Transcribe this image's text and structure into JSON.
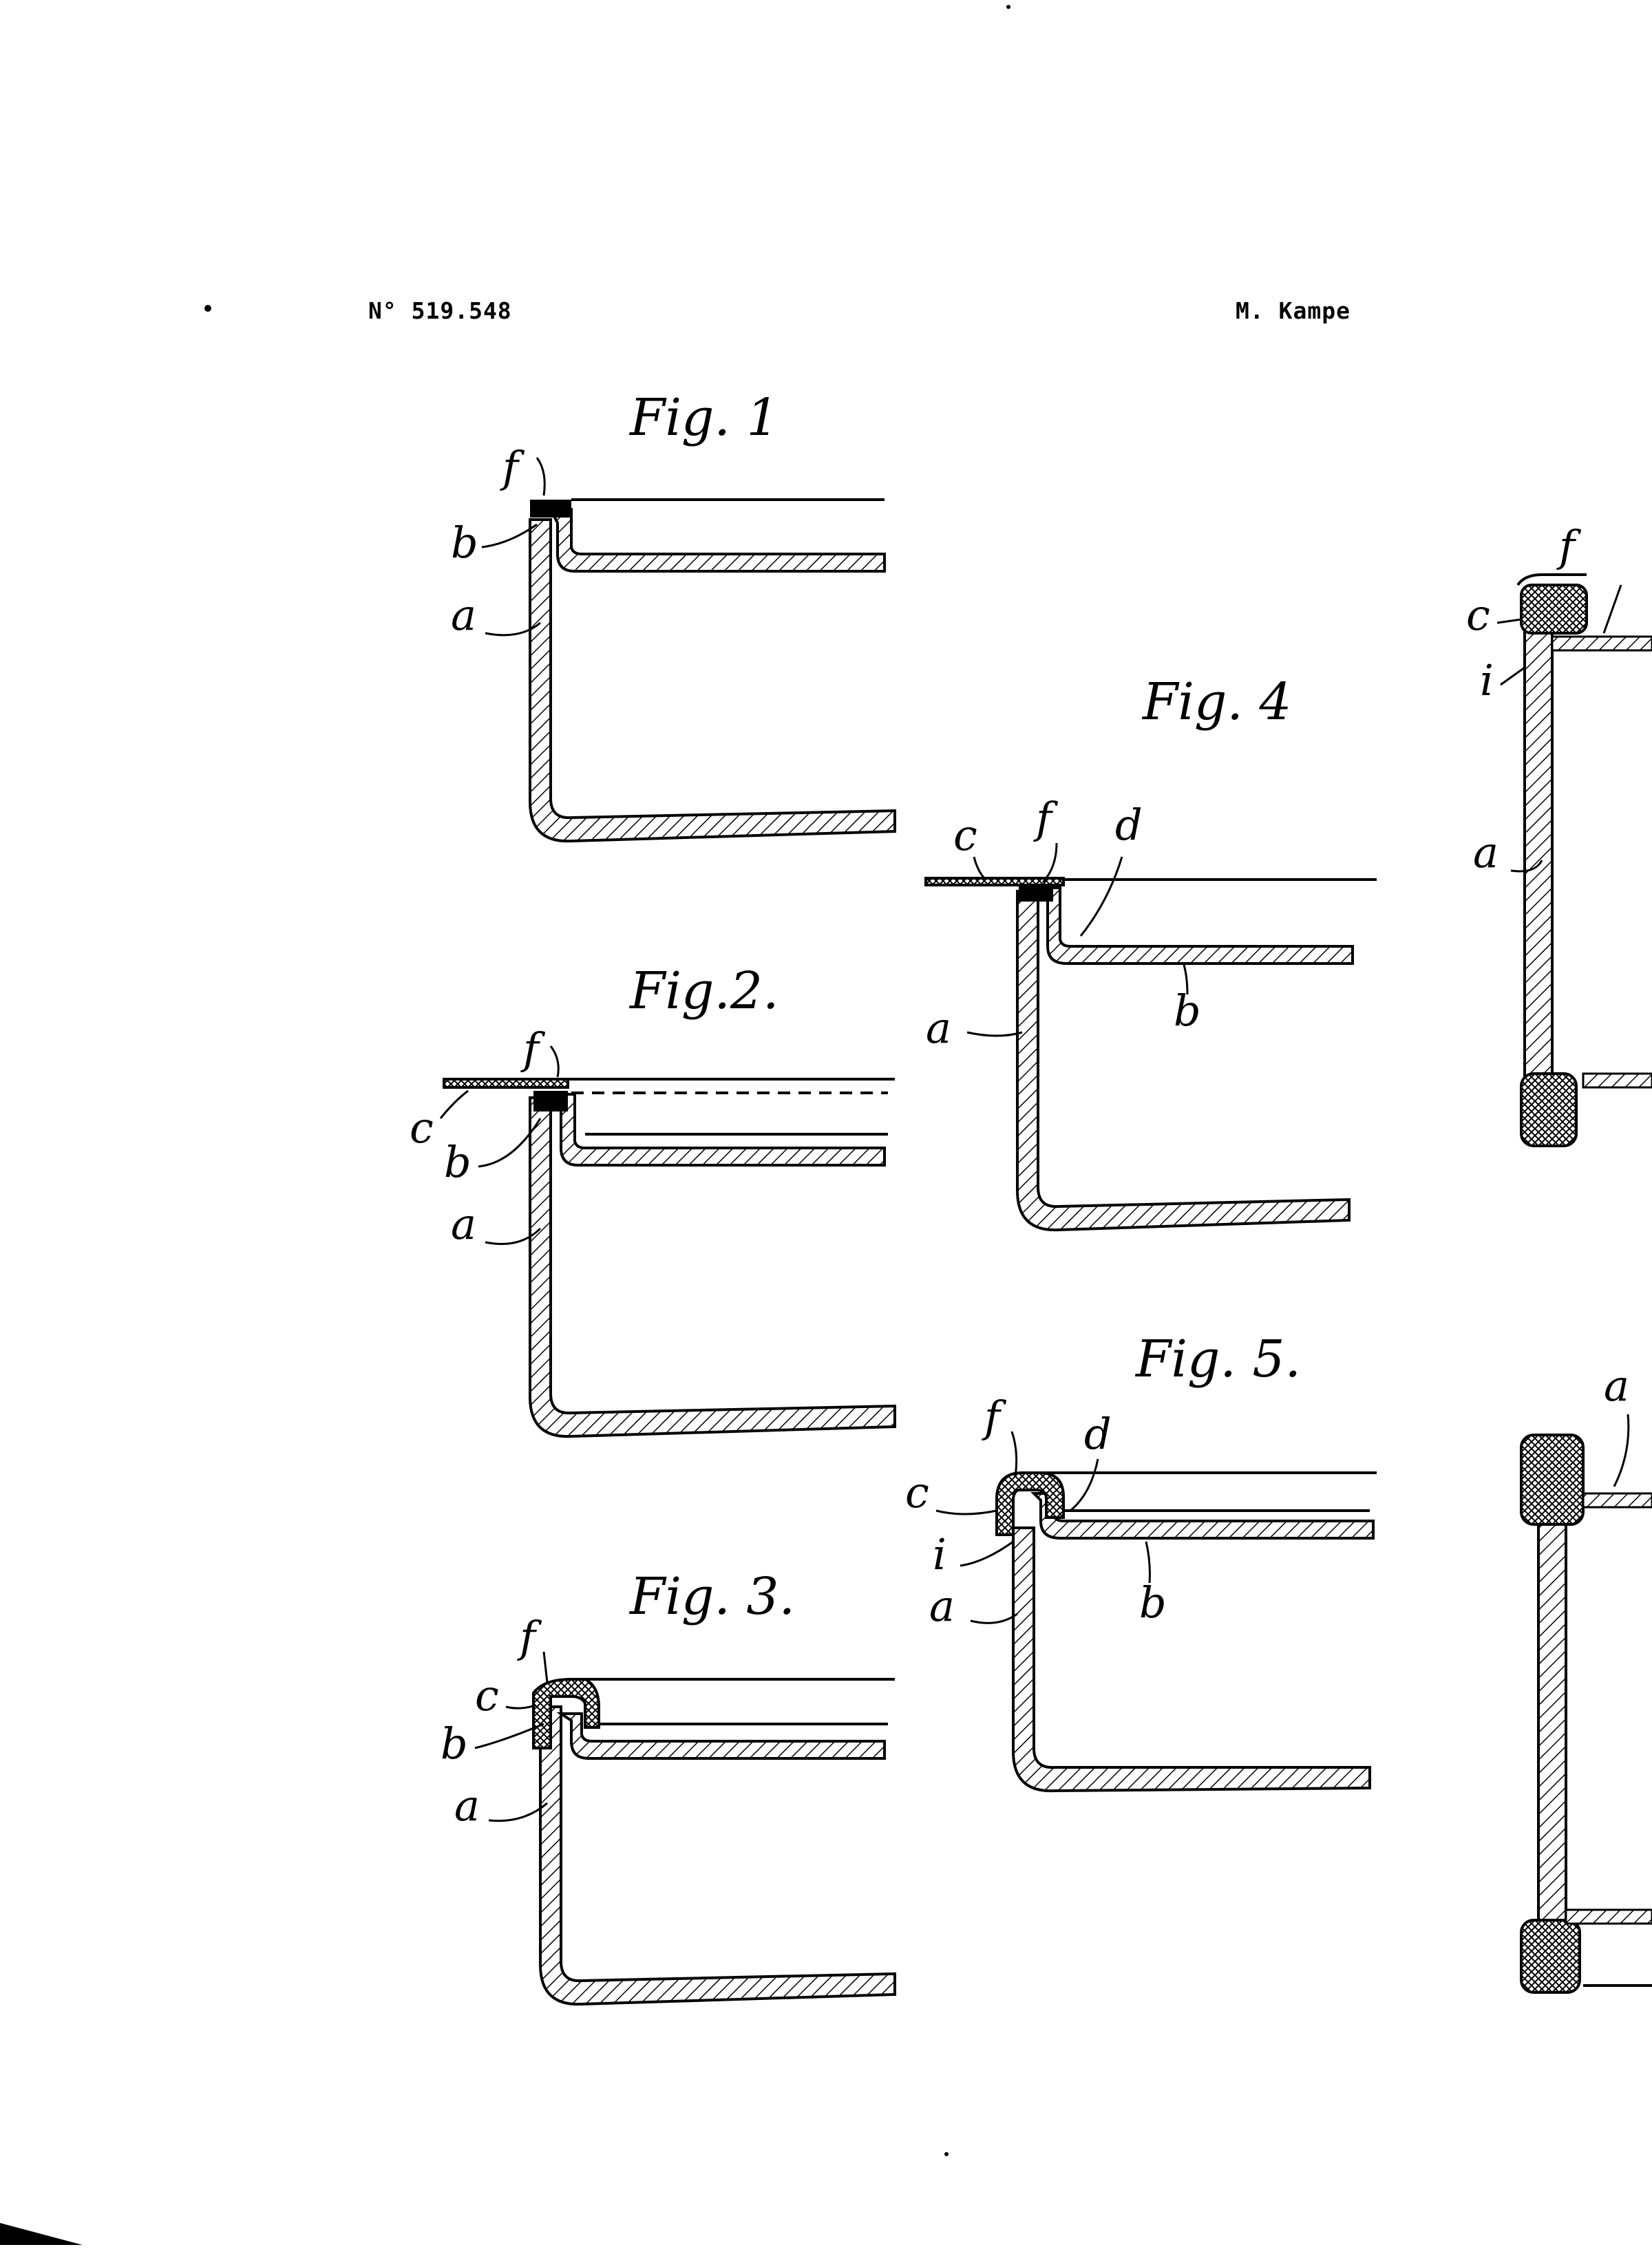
{
  "header": {
    "patent_number": "N° 519.548",
    "inventor": "M. Kampe"
  },
  "figures": {
    "fig1": {
      "title": "Fig. 1",
      "labels": {
        "f": "f",
        "b": "b",
        "a": "a"
      }
    },
    "fig2": {
      "title": "Fig.2.",
      "labels": {
        "f": "f",
        "c": "c",
        "b": "b",
        "a": "a"
      }
    },
    "fig3": {
      "title": "Fig. 3.",
      "labels": {
        "f": "f",
        "c": "c",
        "b": "b",
        "a": "a"
      }
    },
    "fig4": {
      "title": "Fig. 4",
      "labels": {
        "c": "c",
        "f": "f",
        "d": "d",
        "a": "a",
        "b": "b"
      }
    },
    "fig5": {
      "title": "Fig. 5.",
      "labels": {
        "f": "f",
        "d": "d",
        "c": "c",
        "i": "i",
        "a": "a",
        "b": "b"
      }
    },
    "fig6": {
      "labels": {
        "f": "f",
        "c": "c",
        "i": "i",
        "a": "a"
      }
    },
    "fig7": {
      "labels": {
        "a": "a"
      }
    }
  }
}
